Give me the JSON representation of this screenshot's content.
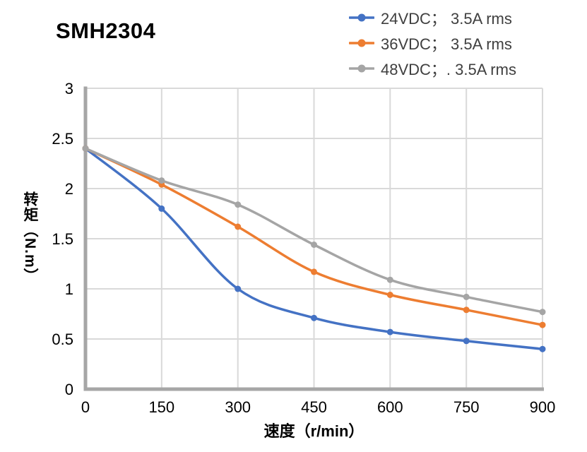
{
  "title": "SMH2304",
  "colors": {
    "series_blue": "#4472C4",
    "series_orange": "#ED7D31",
    "series_gray": "#A5A5A5",
    "gridline": "#D9D9D9",
    "axis_line": "#A6A6A6",
    "legend_text": "#3F3F3F",
    "tick_text": "#000000"
  },
  "chart_data": {
    "type": "line",
    "title": "SMH2304",
    "xlabel": "速度（r/min）",
    "ylabel": "转矩（N.m）",
    "xlim": [
      0,
      900
    ],
    "ylim": [
      0,
      3
    ],
    "xticks": [
      0,
      150,
      300,
      450,
      600,
      750,
      900
    ],
    "yticks": [
      0,
      0.5,
      1,
      1.5,
      2,
      2.5,
      3
    ],
    "grid": true,
    "smooth": true,
    "legend_position": "top-right",
    "x": [
      0,
      150,
      300,
      450,
      600,
      750,
      900
    ],
    "series": [
      {
        "name": "24VDC； 3.5A rms",
        "color": "#4472C4",
        "values": [
          2.4,
          1.8,
          1.0,
          0.71,
          0.57,
          0.48,
          0.4
        ]
      },
      {
        "name": "36VDC； 3.5A rms",
        "color": "#ED7D31",
        "values": [
          2.4,
          2.04,
          1.62,
          1.17,
          0.94,
          0.79,
          0.64
        ]
      },
      {
        "name": "48VDC；. 3.5A rms",
        "color": "#A5A5A5",
        "values": [
          2.4,
          2.08,
          1.84,
          1.44,
          1.09,
          0.92,
          0.77
        ]
      }
    ]
  }
}
